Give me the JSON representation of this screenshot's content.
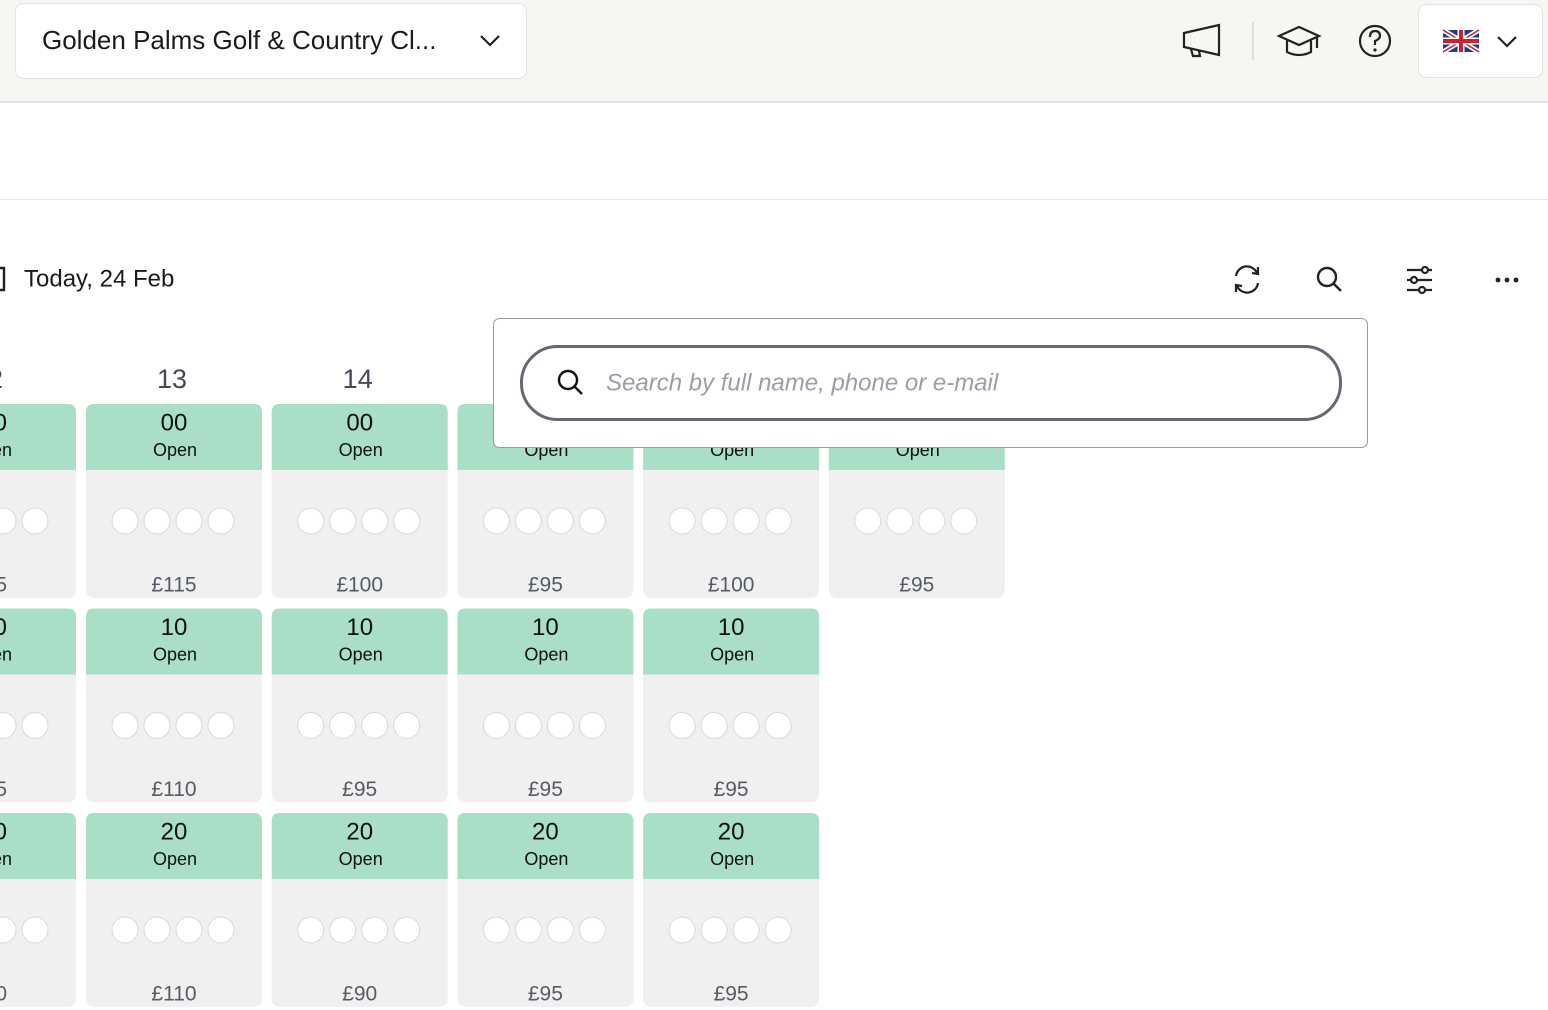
{
  "header": {
    "club": "Golden Palms Golf & Country Cl..."
  },
  "toolbar": {
    "date": "Today, 24 Feb"
  },
  "search": {
    "placeholder": "Search by full name, phone or e-mail"
  },
  "columns": [
    {
      "hour": "2",
      "cards": [
        {
          "time": "0",
          "status": "en",
          "price": "5"
        },
        {
          "time": "0",
          "status": "en",
          "price": "5"
        },
        {
          "time": "0",
          "status": "en",
          "price": "0"
        }
      ]
    },
    {
      "hour": "13",
      "cards": [
        {
          "time": "00",
          "status": "Open",
          "price": "£115"
        },
        {
          "time": "10",
          "status": "Open",
          "price": "£110"
        },
        {
          "time": "20",
          "status": "Open",
          "price": "£110"
        }
      ]
    },
    {
      "hour": "14",
      "cards": [
        {
          "time": "00",
          "status": "Open",
          "price": "£100"
        },
        {
          "time": "10",
          "status": "Open",
          "price": "£95"
        },
        {
          "time": "20",
          "status": "Open",
          "price": "£90"
        }
      ]
    },
    {
      "cards": [
        {
          "status": "Open",
          "price": "£95"
        },
        {
          "time": "10",
          "status": "Open",
          "price": "£95"
        },
        {
          "time": "20",
          "status": "Open",
          "price": "£95"
        }
      ]
    },
    {
      "cards": [
        {
          "status": "Open",
          "price": "£100"
        },
        {
          "time": "10",
          "status": "Open",
          "price": "£95"
        },
        {
          "time": "20",
          "status": "Open",
          "price": "£95"
        }
      ]
    },
    {
      "cards": [
        {
          "status": "Open",
          "price": "£95"
        }
      ]
    }
  ]
}
